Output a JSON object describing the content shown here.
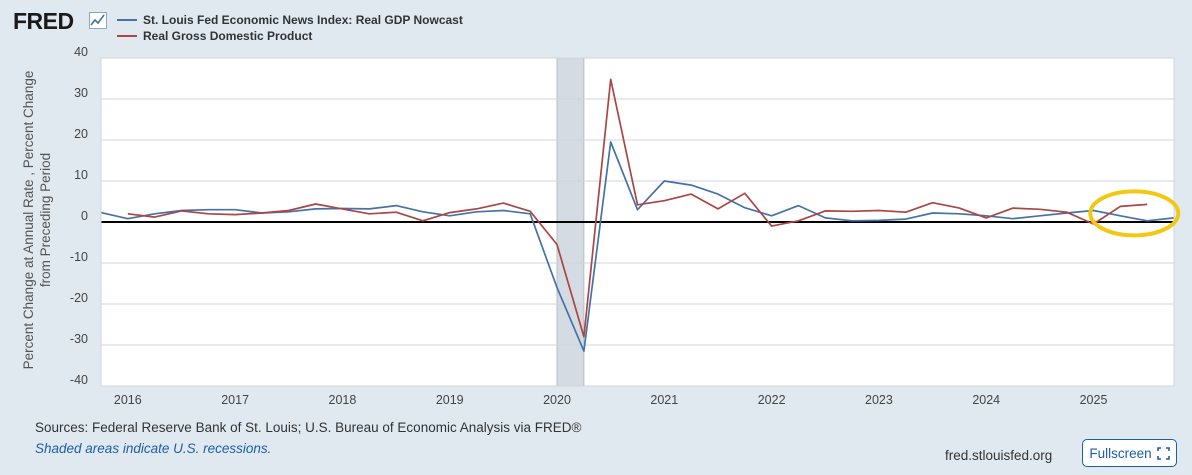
{
  "header": {
    "logo_text": "FRED",
    "logo_icon": "line-chart-icon"
  },
  "legend": {
    "items": [
      {
        "label": "St. Louis Fed Economic News Index: Real GDP Nowcast",
        "color": "#4572a7"
      },
      {
        "label": "Real Gross Domestic Product",
        "color": "#aa4643"
      }
    ]
  },
  "axis": {
    "ylabel_line1": "Percent Change at Annual Rate , Percent Change",
    "ylabel_line2": "from Preceding Period"
  },
  "footer": {
    "sources": "Sources: Federal Reserve Bank of St. Louis; U.S. Bureau of Economic Analysis via FRED®",
    "note": "Shaded areas indicate U.S. recessions.",
    "site": "fred.stlouisfed.org",
    "fullscreen_label": "Fullscreen",
    "fullscreen_icon": "expand-icon"
  },
  "annotation": {
    "label": "highlight-circle",
    "color": "#f2c811"
  },
  "chart_data": {
    "type": "line",
    "title": "",
    "xlabel": "",
    "ylabel": "Percent Change at Annual Rate , Percent Change from Preceding Period",
    "xlim": [
      2015.75,
      2025.75
    ],
    "ylim": [
      -40,
      40
    ],
    "yticks": [
      40,
      30,
      20,
      10,
      0,
      -10,
      -20,
      -30,
      -40
    ],
    "xticks": [
      {
        "label": "2016",
        "value": 2016.0
      },
      {
        "label": "2017",
        "value": 2017.0
      },
      {
        "label": "2018",
        "value": 2018.0
      },
      {
        "label": "2019",
        "value": 2019.0
      },
      {
        "label": "2020",
        "value": 2020.0
      },
      {
        "label": "2021",
        "value": 2021.0
      },
      {
        "label": "2022",
        "value": 2022.0
      },
      {
        "label": "2023",
        "value": 2023.0
      },
      {
        "label": "2024",
        "value": 2024.0
      },
      {
        "label": "2025",
        "value": 2025.0
      }
    ],
    "grid": true,
    "recession": [
      2020.0,
      2020.25
    ],
    "series": [
      {
        "name": "St. Louis Fed Economic News Index: Real GDP Nowcast",
        "color": "#4572a7",
        "x": [
          2015.75,
          2016.0,
          2016.25,
          2016.5,
          2016.75,
          2017.0,
          2017.25,
          2017.5,
          2017.75,
          2018.0,
          2018.25,
          2018.5,
          2018.75,
          2019.0,
          2019.25,
          2019.5,
          2019.75,
          2020.0,
          2020.25,
          2020.5,
          2020.75,
          2021.0,
          2021.25,
          2021.5,
          2021.75,
          2022.0,
          2022.25,
          2022.5,
          2022.75,
          2023.0,
          2023.25,
          2023.5,
          2023.75,
          2024.0,
          2024.25,
          2024.5,
          2024.75,
          2025.0,
          2025.25,
          2025.5,
          2025.75
        ],
        "values": [
          2.3,
          0.8,
          2.0,
          2.8,
          3.0,
          3.0,
          2.2,
          2.5,
          3.2,
          3.3,
          3.2,
          4.0,
          2.5,
          1.5,
          2.5,
          2.8,
          2.0,
          -16.0,
          -31.5,
          19.5,
          3.0,
          10.0,
          9.0,
          6.8,
          3.5,
          1.5,
          4.0,
          1.0,
          0.3,
          0.4,
          0.7,
          2.2,
          2.0,
          1.5,
          0.8,
          1.5,
          2.2,
          2.8,
          1.5,
          0.3,
          1.0
        ]
      },
      {
        "name": "Real Gross Domestic Product",
        "color": "#aa4643",
        "x": [
          2016.0,
          2016.25,
          2016.5,
          2016.75,
          2017.0,
          2017.25,
          2017.5,
          2017.75,
          2018.0,
          2018.25,
          2018.5,
          2018.75,
          2019.0,
          2019.25,
          2019.5,
          2019.75,
          2020.0,
          2020.25,
          2020.5,
          2020.75,
          2021.0,
          2021.25,
          2021.5,
          2021.75,
          2022.0,
          2022.25,
          2022.5,
          2022.75,
          2023.0,
          2023.25,
          2023.5,
          2023.75,
          2024.0,
          2024.25,
          2024.5,
          2024.75,
          2025.0,
          2025.25,
          2025.5
        ],
        "values": [
          2.0,
          1.2,
          2.7,
          2.0,
          1.8,
          2.2,
          2.8,
          4.4,
          3.2,
          2.0,
          2.4,
          0.3,
          2.3,
          3.2,
          4.6,
          2.6,
          -5.5,
          -28.0,
          34.8,
          4.2,
          5.2,
          6.8,
          3.2,
          7.0,
          -1.0,
          0.3,
          2.7,
          2.6,
          2.8,
          2.4,
          4.7,
          3.4,
          1.0,
          3.4,
          3.1,
          2.4,
          -0.5,
          3.8,
          4.3
        ]
      }
    ]
  }
}
